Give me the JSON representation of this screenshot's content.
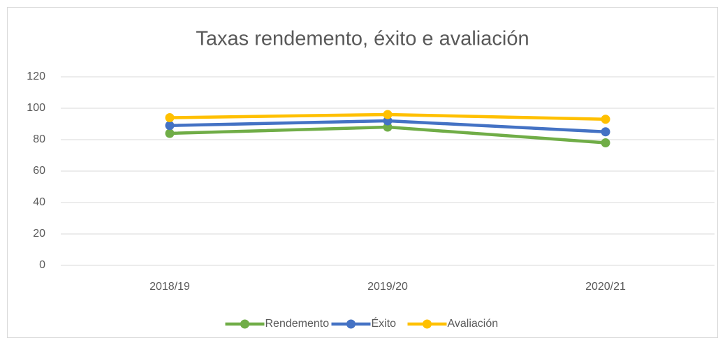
{
  "chart_data": {
    "type": "line",
    "title": "Taxas rendemento, éxito e avaliación",
    "categories": [
      "2018/19",
      "2019/20",
      "2020/21"
    ],
    "series": [
      {
        "name": "Rendemento",
        "color": "#70ad47",
        "values": [
          84,
          88,
          78
        ]
      },
      {
        "name": "Éxito",
        "color": "#4472c4",
        "values": [
          89,
          92,
          85
        ]
      },
      {
        "name": "Avaliación",
        "color": "#ffc000",
        "values": [
          94,
          96,
          93
        ]
      }
    ],
    "ylim": [
      0,
      120
    ],
    "yticks": [
      0,
      20,
      40,
      60,
      80,
      100,
      120
    ],
    "grid": true,
    "legend": "bottom"
  }
}
